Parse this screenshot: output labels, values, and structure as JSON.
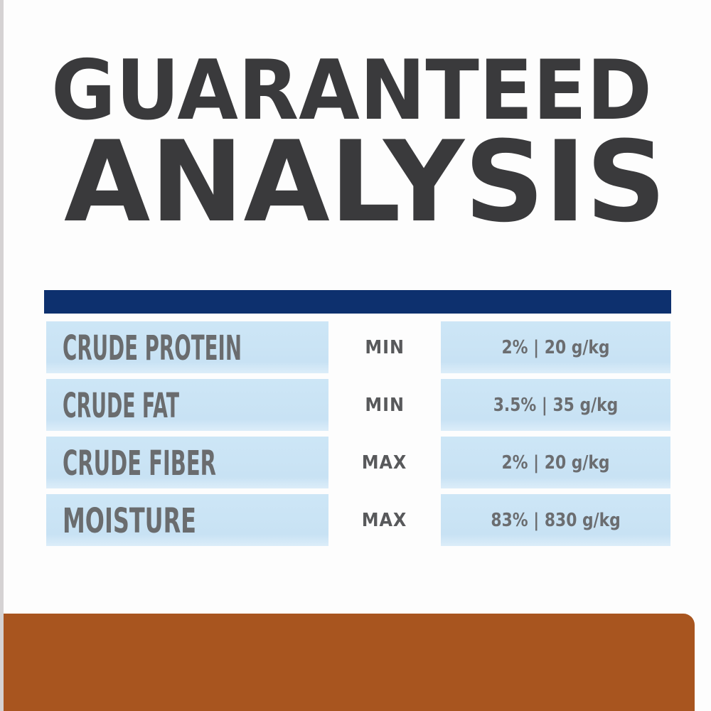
{
  "title": {
    "line1": "GUARANTEED",
    "line2": "ANALYSIS"
  },
  "table": {
    "rows": [
      {
        "nutrient": "CRUDE PROTEIN",
        "limit": "MIN",
        "value": "2% | 20 g/kg"
      },
      {
        "nutrient": "CRUDE FAT",
        "limit": "MIN",
        "value": "3.5% | 35 g/kg"
      },
      {
        "nutrient": "CRUDE FIBER",
        "limit": "MAX",
        "value": "2% | 20 g/kg"
      },
      {
        "nutrient": "MOISTURE",
        "limit": "MAX",
        "value": "83% | 830 g/kg"
      }
    ]
  },
  "colors": {
    "title_text": "#3a3a3c",
    "divider_navy": "#0d306e",
    "row_light_blue": "#c8e2f4",
    "nutrient_gray": "#6a6c6e",
    "limit_gray": "#58595b",
    "value_gray": "#6b6d70",
    "footer_orange": "#a8551f",
    "edge_strip_gray": "#d5d2d3"
  }
}
